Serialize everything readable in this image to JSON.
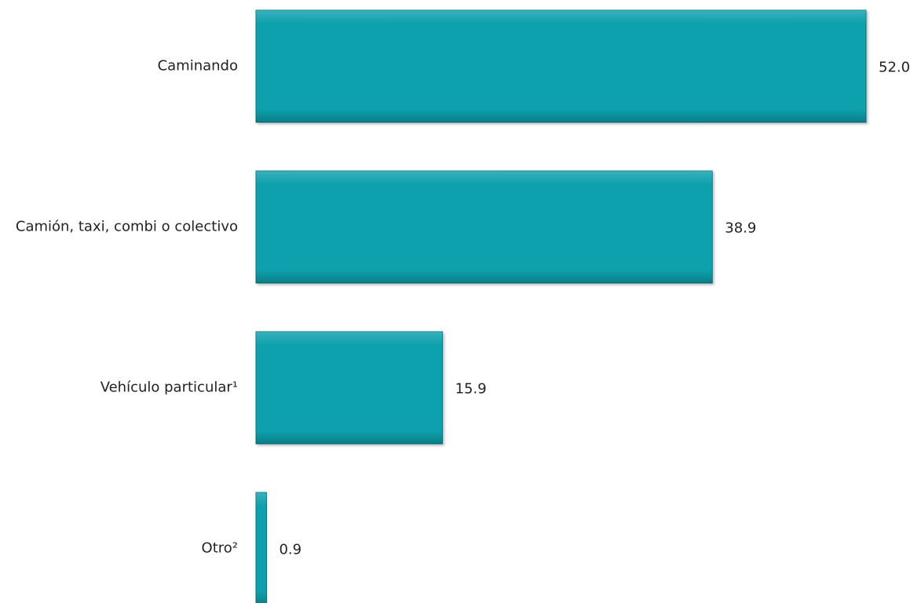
{
  "chart_data": {
    "type": "bar",
    "orientation": "horizontal",
    "categories": [
      "Caminando",
      "Camión, taxi, combi o colectivo",
      "Vehículo particular¹",
      "Otro²"
    ],
    "values": [
      52.0,
      38.9,
      15.9,
      0.9
    ],
    "value_labels": [
      "52.0",
      "38.9",
      "15.9",
      "0.9"
    ],
    "title": "",
    "xlabel": "",
    "ylabel": "",
    "xlim": [
      0,
      52.0
    ],
    "grid": false,
    "legend": "none",
    "bar_color": "#0aa1ad",
    "bar_edge_color": "#067880"
  }
}
